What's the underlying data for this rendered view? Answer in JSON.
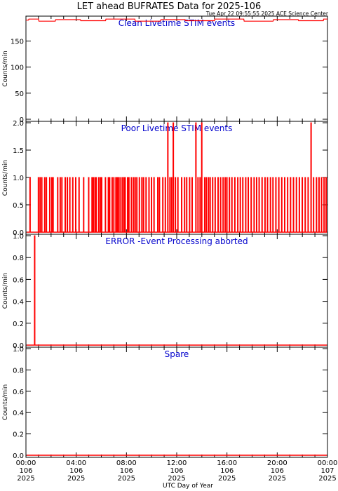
{
  "header": {
    "title": "LET ahead BUFRATES Data for 2025-106",
    "timestamp": "Tue Apr 22 09:55:55 2025 ACE Science Center"
  },
  "colors": {
    "data": "#ff0000",
    "panel_title": "#0000cc",
    "axis": "#000000"
  },
  "chart_data": [
    {
      "type": "line",
      "title": "Clean Livetime STIM events",
      "ylabel": "Counts/min",
      "ylim": [
        0,
        195
      ],
      "yticks": [
        "0",
        "50",
        "100",
        "150"
      ],
      "xlim": [
        0,
        1440
      ],
      "series": [
        {
          "x": [
            0,
            12,
            14,
            60,
            62,
            140,
            142,
            260,
            262,
            380,
            382,
            520,
            522,
            640,
            645,
            760,
            762,
            900,
            902,
            1040,
            1042,
            1180,
            1182,
            1300,
            1302,
            1420,
            1422,
            1440
          ],
          "values": [
            190,
            190,
            192,
            192,
            188,
            188,
            191,
            191,
            189,
            189,
            192,
            192,
            188,
            188,
            191,
            191,
            189,
            189,
            192,
            192,
            188,
            188,
            191,
            191,
            189,
            189,
            192,
            192
          ]
        }
      ]
    },
    {
      "type": "line",
      "title": "Poor Livetime STIM events",
      "ylabel": "Counts/min",
      "ylim": [
        0,
        2
      ],
      "yticks": [
        "0.0",
        "0.5",
        "1.0",
        "1.5",
        "2.0"
      ],
      "xlim": [
        0,
        1440
      ],
      "series": [
        {
          "spikes": [
            {
              "x": 18,
              "v": 1
            },
            {
              "x": 58,
              "v": 1
            },
            {
              "x": 66,
              "v": 1
            },
            {
              "x": 74,
              "v": 1
            },
            {
              "x": 88,
              "v": 1
            },
            {
              "x": 96,
              "v": 1
            },
            {
              "x": 112,
              "v": 1
            },
            {
              "x": 122,
              "v": 1
            },
            {
              "x": 128,
              "v": 1
            },
            {
              "x": 150,
              "v": 1
            },
            {
              "x": 162,
              "v": 1
            },
            {
              "x": 170,
              "v": 1
            },
            {
              "x": 186,
              "v": 1
            },
            {
              "x": 196,
              "v": 1
            },
            {
              "x": 208,
              "v": 1
            },
            {
              "x": 222,
              "v": 1
            },
            {
              "x": 236,
              "v": 1
            },
            {
              "x": 252,
              "v": 1
            },
            {
              "x": 274,
              "v": 1
            },
            {
              "x": 298,
              "v": 1
            },
            {
              "x": 314,
              "v": 1
            },
            {
              "x": 320,
              "v": 1
            },
            {
              "x": 328,
              "v": 1
            },
            {
              "x": 334,
              "v": 1
            },
            {
              "x": 346,
              "v": 1
            },
            {
              "x": 354,
              "v": 1
            },
            {
              "x": 360,
              "v": 1
            },
            {
              "x": 378,
              "v": 1
            },
            {
              "x": 392,
              "v": 1
            },
            {
              "x": 398,
              "v": 1
            },
            {
              "x": 410,
              "v": 1
            },
            {
              "x": 418,
              "v": 1
            },
            {
              "x": 428,
              "v": 1
            },
            {
              "x": 434,
              "v": 1
            },
            {
              "x": 440,
              "v": 1
            },
            {
              "x": 448,
              "v": 1
            },
            {
              "x": 458,
              "v": 1
            },
            {
              "x": 466,
              "v": 1
            },
            {
              "x": 472,
              "v": 1
            },
            {
              "x": 484,
              "v": 1
            },
            {
              "x": 490,
              "v": 1
            },
            {
              "x": 502,
              "v": 1
            },
            {
              "x": 512,
              "v": 1
            },
            {
              "x": 520,
              "v": 1
            },
            {
              "x": 528,
              "v": 1
            },
            {
              "x": 540,
              "v": 1
            },
            {
              "x": 552,
              "v": 1
            },
            {
              "x": 560,
              "v": 1
            },
            {
              "x": 572,
              "v": 1
            },
            {
              "x": 586,
              "v": 1
            },
            {
              "x": 598,
              "v": 1
            },
            {
              "x": 610,
              "v": 1
            },
            {
              "x": 628,
              "v": 1
            },
            {
              "x": 636,
              "v": 1
            },
            {
              "x": 652,
              "v": 1
            },
            {
              "x": 664,
              "v": 1
            },
            {
              "x": 676,
              "v": 2
            },
            {
              "x": 686,
              "v": 1
            },
            {
              "x": 694,
              "v": 1
            },
            {
              "x": 702,
              "v": 2
            },
            {
              "x": 712,
              "v": 1
            },
            {
              "x": 724,
              "v": 1
            },
            {
              "x": 742,
              "v": 1
            },
            {
              "x": 756,
              "v": 1
            },
            {
              "x": 766,
              "v": 1
            },
            {
              "x": 780,
              "v": 1
            },
            {
              "x": 792,
              "v": 1
            },
            {
              "x": 810,
              "v": 2
            },
            {
              "x": 820,
              "v": 1
            },
            {
              "x": 830,
              "v": 1
            },
            {
              "x": 838,
              "v": 2
            },
            {
              "x": 852,
              "v": 1
            },
            {
              "x": 860,
              "v": 1
            },
            {
              "x": 870,
              "v": 1
            },
            {
              "x": 878,
              "v": 1
            },
            {
              "x": 890,
              "v": 1
            },
            {
              "x": 902,
              "v": 1
            },
            {
              "x": 916,
              "v": 1
            },
            {
              "x": 928,
              "v": 1
            },
            {
              "x": 940,
              "v": 1
            },
            {
              "x": 950,
              "v": 1
            },
            {
              "x": 958,
              "v": 1
            },
            {
              "x": 970,
              "v": 1
            },
            {
              "x": 982,
              "v": 1
            },
            {
              "x": 996,
              "v": 1
            },
            {
              "x": 1010,
              "v": 1
            },
            {
              "x": 1022,
              "v": 1
            },
            {
              "x": 1034,
              "v": 1
            },
            {
              "x": 1048,
              "v": 1
            },
            {
              "x": 1060,
              "v": 1
            },
            {
              "x": 1074,
              "v": 1
            },
            {
              "x": 1088,
              "v": 1
            },
            {
              "x": 1100,
              "v": 1
            },
            {
              "x": 1112,
              "v": 1
            },
            {
              "x": 1126,
              "v": 1
            },
            {
              "x": 1140,
              "v": 1
            },
            {
              "x": 1152,
              "v": 1
            },
            {
              "x": 1166,
              "v": 1
            },
            {
              "x": 1178,
              "v": 1
            },
            {
              "x": 1192,
              "v": 1
            },
            {
              "x": 1206,
              "v": 1
            },
            {
              "x": 1220,
              "v": 1
            },
            {
              "x": 1234,
              "v": 1
            },
            {
              "x": 1248,
              "v": 1
            },
            {
              "x": 1262,
              "v": 1
            },
            {
              "x": 1276,
              "v": 1
            },
            {
              "x": 1290,
              "v": 1
            },
            {
              "x": 1304,
              "v": 1
            },
            {
              "x": 1318,
              "v": 1
            },
            {
              "x": 1332,
              "v": 1
            },
            {
              "x": 1346,
              "v": 1
            },
            {
              "x": 1360,
              "v": 2
            },
            {
              "x": 1372,
              "v": 1
            },
            {
              "x": 1386,
              "v": 1
            },
            {
              "x": 1398,
              "v": 1
            },
            {
              "x": 1410,
              "v": 1
            },
            {
              "x": 1422,
              "v": 1
            },
            {
              "x": 1432,
              "v": 1
            }
          ]
        }
      ]
    },
    {
      "type": "line",
      "title": "ERROR -Event Processing aborted",
      "ylabel": "Counts/min",
      "ylim": [
        0,
        1
      ],
      "yticks": [
        "0.0",
        "0.2",
        "0.4",
        "0.6",
        "0.8",
        "1.0"
      ],
      "xlim": [
        0,
        1440
      ],
      "series": [
        {
          "spikes": [
            {
              "x": 40,
              "v": 1
            }
          ]
        }
      ]
    },
    {
      "type": "line",
      "title": "Spare",
      "ylabel": "Counts/min",
      "ylim": [
        0,
        1
      ],
      "yticks": [
        "0.0",
        "0.2",
        "0.4",
        "0.6",
        "0.8",
        "1.0"
      ],
      "xlim": [
        0,
        1440
      ],
      "series": [
        {
          "spikes": []
        }
      ]
    }
  ],
  "xaxis": {
    "label": "UTC Day of Year",
    "ticks": [
      {
        "x": 0,
        "time": "00:00",
        "doy": "106",
        "year": "2025"
      },
      {
        "x": 240,
        "time": "04:00",
        "doy": "106",
        "year": "2025"
      },
      {
        "x": 480,
        "time": "08:00",
        "doy": "106",
        "year": "2025"
      },
      {
        "x": 720,
        "time": "12:00",
        "doy": "106",
        "year": "2025"
      },
      {
        "x": 960,
        "time": "16:00",
        "doy": "106",
        "year": "2025"
      },
      {
        "x": 1200,
        "time": "20:00",
        "doy": "106",
        "year": "2025"
      },
      {
        "x": 1440,
        "time": "00:00",
        "doy": "107",
        "year": "2025"
      }
    ]
  }
}
